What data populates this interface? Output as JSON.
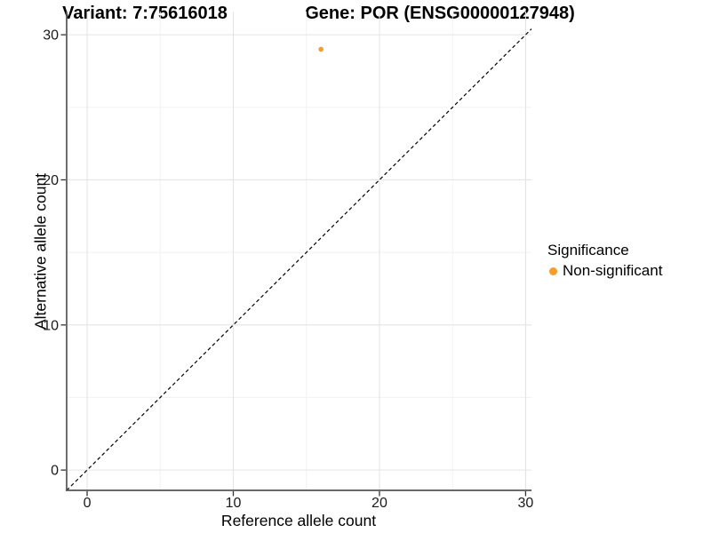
{
  "header": {
    "variant_title": "Variant: 7:75616018",
    "gene_title": "Gene: POR (ENSG00000127948)"
  },
  "legend": {
    "title": "Significance",
    "items": [
      {
        "label": "Non-significant",
        "color": "#F89C28"
      }
    ]
  },
  "axes": {
    "x": {
      "title": "Reference allele count",
      "tick_labels": [
        "0",
        "10",
        "20",
        "30"
      ]
    },
    "y": {
      "title": "Alternative allele count",
      "tick_labels": [
        "0",
        "10",
        "20",
        "30"
      ]
    }
  },
  "chart_data": {
    "type": "scatter",
    "title_left": "Variant: 7:75616018",
    "title_right": "Gene: POR (ENSG00000127948)",
    "xlabel": "Reference allele count",
    "ylabel": "Alternative allele count",
    "xlim": [
      -1.4,
      30.4
    ],
    "ylim": [
      -1.4,
      31.6
    ],
    "x_major_ticks": [
      0,
      10,
      20,
      30
    ],
    "y_major_ticks": [
      0,
      10,
      20,
      30
    ],
    "x_minor_ticks": [
      5,
      15,
      25
    ],
    "y_minor_ticks": [
      5,
      15,
      25
    ],
    "grid": true,
    "legend_position": "right",
    "series": [
      {
        "name": "Non-significant",
        "color": "#F89C28",
        "marker": "circle",
        "points": [
          {
            "x": 16,
            "y": 29
          }
        ]
      }
    ],
    "reference_line": {
      "type": "identity y=x",
      "from": [
        -1.4,
        -1.4
      ],
      "to": [
        30.4,
        30.4
      ],
      "style": "dashed",
      "color": "#000000"
    }
  },
  "colors": {
    "background": "#FFFFFF",
    "grid_major": "#E4E4E4",
    "grid_minor": "#F1F1F1",
    "axis_line": "#555555",
    "tick_mark": "#333333",
    "tick_text": "#1A1A1A",
    "point": "#F89C28"
  }
}
